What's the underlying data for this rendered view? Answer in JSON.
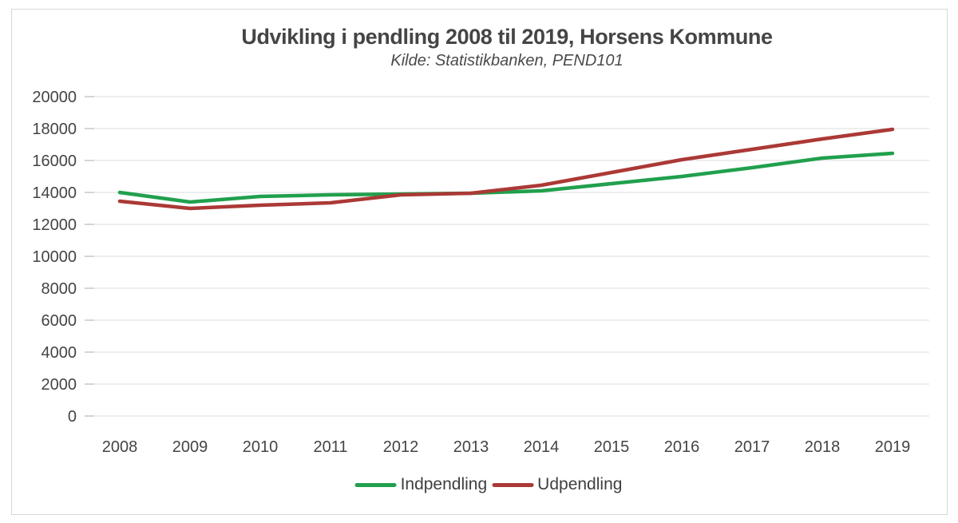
{
  "title": "Udvikling i pendling 2008 til 2019, Horsens Kommune",
  "subtitle": "Kilde: Statistikbanken, PEND101",
  "colors": {
    "indpendling": "#21a04d",
    "udpendling": "#ab3936",
    "gridline": "#dedede",
    "tick_mark": "#c3c3c3",
    "axis_text": "#444444",
    "frame_border": "#d7d7d7",
    "background": "#ffffff"
  },
  "legend": {
    "items": [
      {
        "label": "Indpendling",
        "color": "#21a04d"
      },
      {
        "label": "Udpendling",
        "color": "#ab3936"
      }
    ],
    "position": "bottom"
  },
  "chart_data": {
    "type": "line",
    "title": "Udvikling i pendling 2008 til 2019, Horsens Kommune",
    "subtitle": "Kilde: Statistikbanken, PEND101",
    "categories": [
      "2008",
      "2009",
      "2010",
      "2011",
      "2012",
      "2013",
      "2014",
      "2015",
      "2016",
      "2017",
      "2018",
      "2019"
    ],
    "series": [
      {
        "name": "Indpendling",
        "color": "#21a04d",
        "values": [
          14000,
          13400,
          13750,
          13850,
          13900,
          13950,
          14100,
          14550,
          15000,
          15550,
          16150,
          16450
        ]
      },
      {
        "name": "Udpendling",
        "color": "#ab3936",
        "values": [
          13450,
          13000,
          13200,
          13350,
          13850,
          13950,
          14450,
          15250,
          16050,
          16700,
          17350,
          17950
        ]
      }
    ],
    "xlabel": "",
    "ylabel": "",
    "ylim": [
      0,
      20000
    ],
    "ytick_step": 2000,
    "ytick_labels": [
      "0",
      "2000",
      "4000",
      "6000",
      "8000",
      "10000",
      "12000",
      "14000",
      "16000",
      "18000",
      "20000"
    ],
    "grid": true,
    "legend_position": "bottom"
  }
}
